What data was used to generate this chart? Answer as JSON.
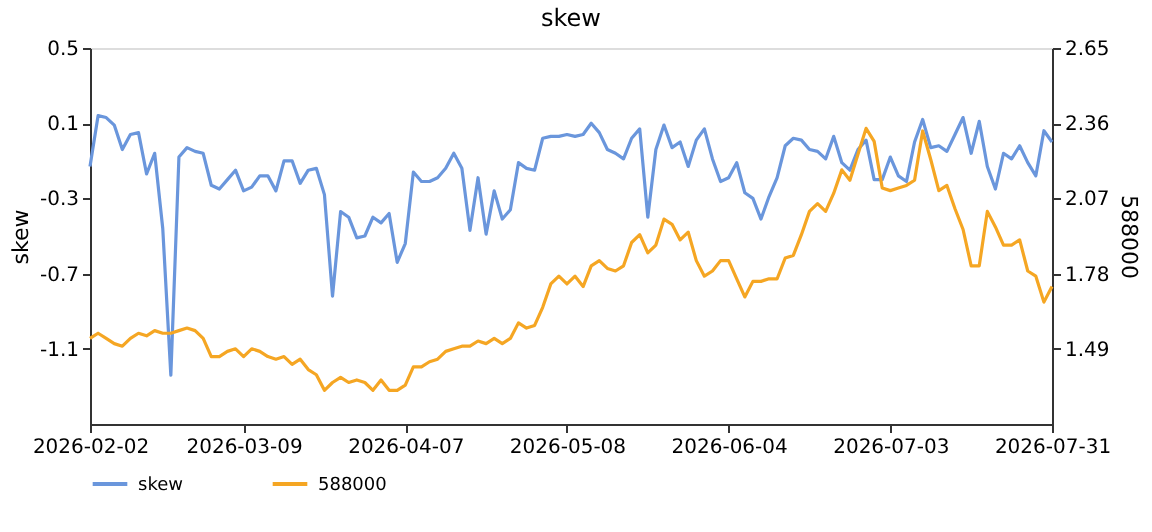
{
  "chart_data": {
    "type": "line",
    "title": "skew",
    "ylabel": "skew",
    "y2label": "588000",
    "categories": [
      "2026-02-02",
      null,
      null,
      null,
      null,
      null,
      null,
      null,
      null,
      null,
      null,
      null,
      null,
      null,
      null,
      null,
      null,
      null,
      null,
      "2026-03-09",
      null,
      null,
      null,
      null,
      null,
      null,
      null,
      null,
      null,
      null,
      null,
      null,
      null,
      null,
      null,
      null,
      null,
      null,
      null,
      "2026-04-07",
      null,
      null,
      null,
      null,
      null,
      null,
      null,
      null,
      null,
      null,
      null,
      null,
      null,
      null,
      null,
      null,
      null,
      null,
      null,
      "2026-05-08",
      null,
      null,
      null,
      null,
      null,
      null,
      null,
      null,
      null,
      null,
      null,
      null,
      null,
      null,
      null,
      null,
      null,
      null,
      null,
      "2026-06-04",
      null,
      null,
      null,
      null,
      null,
      null,
      null,
      null,
      null,
      null,
      null,
      null,
      null,
      null,
      null,
      null,
      null,
      null,
      null,
      "2026-07-03",
      null,
      null,
      null,
      null,
      null,
      null,
      null,
      null,
      null,
      null,
      null,
      null,
      null,
      null,
      null,
      null,
      null,
      null,
      null,
      "2026-07-31"
    ],
    "series": [
      {
        "name": "skew",
        "color": "#6a96dc",
        "values": [
          -0.13,
          0.14,
          0.13,
          0.09,
          -0.04,
          0.04,
          0.05,
          -0.17,
          -0.06,
          -0.46,
          -1.24,
          -0.08,
          -0.03,
          -0.05,
          -0.06,
          -0.23,
          -0.25,
          -0.2,
          -0.15,
          -0.26,
          -0.24,
          -0.18,
          -0.18,
          -0.26,
          -0.1,
          -0.1,
          -0.22,
          -0.15,
          -0.14,
          -0.28,
          -0.82,
          -0.37,
          -0.4,
          -0.51,
          -0.5,
          -0.4,
          -0.43,
          -0.38,
          -0.64,
          -0.54,
          -0.16,
          -0.21,
          -0.21,
          -0.19,
          -0.14,
          -0.06,
          -0.14,
          -0.47,
          -0.19,
          -0.49,
          -0.26,
          -0.41,
          -0.36,
          -0.11,
          -0.14,
          -0.15,
          0.02,
          0.03,
          0.03,
          0.04,
          0.03,
          0.04,
          0.1,
          0.05,
          -0.04,
          -0.06,
          -0.09,
          0.02,
          0.07,
          -0.4,
          -0.04,
          0.09,
          -0.03,
          0.0,
          -0.13,
          0.01,
          0.07,
          -0.09,
          -0.21,
          -0.19,
          -0.11,
          -0.27,
          -0.3,
          -0.41,
          -0.29,
          -0.19,
          -0.02,
          0.02,
          0.01,
          -0.04,
          -0.05,
          -0.09,
          0.03,
          -0.11,
          -0.15,
          -0.04,
          0.01,
          -0.2,
          -0.2,
          -0.08,
          -0.18,
          -0.21,
          0.0,
          0.12,
          -0.03,
          -0.02,
          -0.05,
          0.04,
          0.13,
          -0.06,
          0.11,
          -0.13,
          -0.25,
          -0.06,
          -0.09,
          -0.02,
          -0.11,
          -0.18,
          0.06,
          0.0
        ]
      },
      {
        "name": "588000",
        "color": "#f5a623",
        "axis": "y2",
        "values": [
          1.53,
          1.55,
          1.53,
          1.51,
          1.5,
          1.53,
          1.55,
          1.54,
          1.56,
          1.55,
          1.55,
          1.56,
          1.57,
          1.56,
          1.53,
          1.46,
          1.46,
          1.48,
          1.49,
          1.46,
          1.49,
          1.48,
          1.46,
          1.45,
          1.46,
          1.43,
          1.45,
          1.41,
          1.39,
          1.33,
          1.36,
          1.38,
          1.36,
          1.37,
          1.36,
          1.33,
          1.37,
          1.33,
          1.33,
          1.35,
          1.42,
          1.42,
          1.44,
          1.45,
          1.48,
          1.49,
          1.5,
          1.5,
          1.52,
          1.51,
          1.53,
          1.51,
          1.53,
          1.59,
          1.57,
          1.58,
          1.65,
          1.74,
          1.77,
          1.74,
          1.77,
          1.73,
          1.81,
          1.83,
          1.8,
          1.79,
          1.81,
          1.9,
          1.93,
          1.86,
          1.89,
          1.99,
          1.97,
          1.91,
          1.94,
          1.83,
          1.77,
          1.79,
          1.83,
          1.83,
          1.76,
          1.69,
          1.75,
          1.75,
          1.76,
          1.76,
          1.84,
          1.85,
          1.93,
          2.02,
          2.05,
          2.02,
          2.09,
          2.18,
          2.14,
          2.24,
          2.34,
          2.29,
          2.11,
          2.1,
          2.11,
          2.12,
          2.14,
          2.33,
          2.22,
          2.1,
          2.12,
          2.03,
          1.95,
          1.81,
          1.81,
          2.02,
          1.96,
          1.89,
          1.89,
          1.91,
          1.79,
          1.77,
          1.67,
          1.73
        ]
      }
    ],
    "ylim": [
      -1.5,
      0.5
    ],
    "yticks": [
      0.5,
      0.1,
      -0.3,
      -0.7,
      -1.1
    ],
    "y2lim": [
      1.2,
      2.65
    ],
    "y2ticks": [
      2.65,
      2.36,
      2.07,
      1.78,
      1.49
    ],
    "legend": "bottom",
    "grid": false,
    "marker": "none",
    "line_style": "solid"
  }
}
